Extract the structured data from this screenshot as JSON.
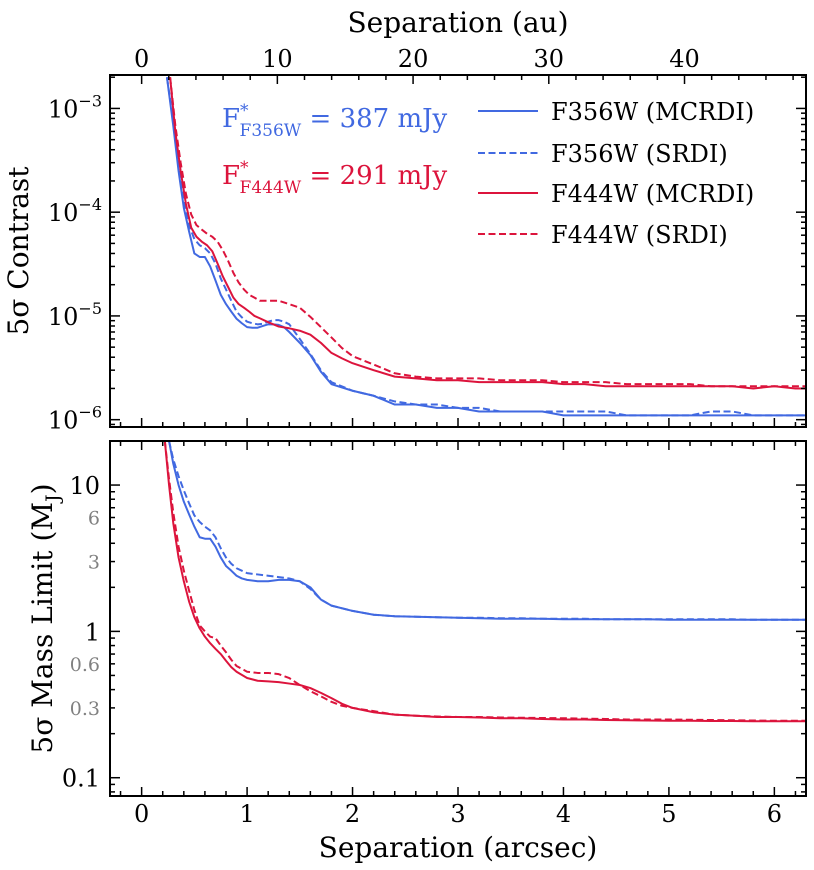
{
  "chart_data": [
    {
      "type": "line",
      "panel": "top",
      "xlabel_top": "Separation (au)",
      "ylabel": "5σ Contrast",
      "yscale": "log",
      "ylim": [
        8.5e-07,
        0.0021
      ],
      "xlim": [
        -0.3,
        6.3
      ],
      "au_per_arcsec": 7.77,
      "top_ticks_au": [
        0,
        10,
        20,
        30,
        40
      ],
      "top_tick_labels": [
        "0",
        "10",
        "20",
        "30",
        "40"
      ],
      "y_tick_labels": [
        {
          "value": 0.001,
          "mantissa": "10",
          "exp": "−3"
        },
        {
          "value": 0.0001,
          "mantissa": "10",
          "exp": "−4"
        },
        {
          "value": 1e-05,
          "mantissa": "10",
          "exp": "−5"
        },
        {
          "value": 1e-06,
          "mantissa": "10",
          "exp": "−6"
        }
      ],
      "annotations": [
        {
          "id": "f356",
          "color": "#4169E1",
          "base": "F",
          "sup": "*",
          "sub": "F356W",
          "rest": "= 387 mJy"
        },
        {
          "id": "f444",
          "color": "#DC143C",
          "base": "F",
          "sup": "*",
          "sub": "F444W",
          "rest": "= 291 mJy"
        }
      ],
      "legend_position": "top-right",
      "series": [
        {
          "name": "F356W (MCRDI)",
          "color": "#4169E1",
          "dash": "solid",
          "x": [
            0.24,
            0.3,
            0.35,
            0.4,
            0.45,
            0.5,
            0.55,
            0.6,
            0.65,
            0.7,
            0.75,
            0.8,
            0.85,
            0.9,
            0.95,
            1.0,
            1.05,
            1.1,
            1.15,
            1.2,
            1.25,
            1.3,
            1.35,
            1.4,
            1.5,
            1.6,
            1.7,
            1.8,
            2.0,
            2.2,
            2.4,
            2.6,
            2.8,
            3.0,
            3.2,
            3.4,
            3.6,
            3.8,
            4.0,
            4.2,
            4.4,
            4.6,
            4.8,
            5.0,
            5.2,
            5.4,
            5.6,
            5.8,
            6.0,
            6.2,
            6.3
          ],
          "y": [
            0.002,
            0.00068,
            0.00025,
            0.00011,
            6.5e-05,
            4e-05,
            3.7e-05,
            3.7e-05,
            3e-05,
            2.2e-05,
            1.6e-05,
            1.3e-05,
            1.1e-05,
            9.4e-06,
            8.5e-06,
            7.8e-06,
            7.7e-06,
            7.7e-06,
            8e-06,
            8.3e-06,
            8.3e-06,
            8.2e-06,
            7.8e-06,
            7e-06,
            5.5e-06,
            4.2e-06,
            2.9e-06,
            2.2e-06,
            1.9e-06,
            1.7e-06,
            1.4e-06,
            1.4e-06,
            1.3e-06,
            1.3e-06,
            1.2e-06,
            1.2e-06,
            1.2e-06,
            1.2e-06,
            1.1e-06,
            1.1e-06,
            1.1e-06,
            1.1e-06,
            1.1e-06,
            1.1e-06,
            1.1e-06,
            1.1e-06,
            1.1e-06,
            1.1e-06,
            1.1e-06,
            1.1e-06,
            1.1e-06
          ]
        },
        {
          "name": "F356W (SRDI)",
          "color": "#4169E1",
          "dash": "dashed",
          "x": [
            0.24,
            0.3,
            0.35,
            0.4,
            0.45,
            0.5,
            0.55,
            0.6,
            0.65,
            0.7,
            0.75,
            0.8,
            0.85,
            0.9,
            0.95,
            1.0,
            1.05,
            1.1,
            1.15,
            1.2,
            1.25,
            1.3,
            1.35,
            1.4,
            1.5,
            1.6,
            1.7,
            1.8,
            2.0,
            2.2,
            2.4,
            2.6,
            2.8,
            3.0,
            3.2,
            3.4,
            3.6,
            3.8,
            4.0,
            4.2,
            4.4,
            4.6,
            4.8,
            5.0,
            5.2,
            5.4,
            5.6,
            5.8,
            6.0,
            6.2,
            6.3
          ],
          "y": [
            0.002,
            0.00075,
            0.00029,
            0.00013,
            7.5e-05,
            5.5e-05,
            4.8e-05,
            4.5e-05,
            4e-05,
            3.2e-05,
            2.3e-05,
            1.8e-05,
            1.4e-05,
            1.1e-05,
            9.7e-06,
            8.8e-06,
            8.5e-06,
            8.3e-06,
            8.4e-06,
            8.8e-06,
            9.1e-06,
            9.1e-06,
            8.8e-06,
            8.3e-06,
            6e-06,
            4.3e-06,
            3e-06,
            2.3e-06,
            1.9e-06,
            1.7e-06,
            1.5e-06,
            1.4e-06,
            1.4e-06,
            1.3e-06,
            1.3e-06,
            1.2e-06,
            1.2e-06,
            1.2e-06,
            1.2e-06,
            1.2e-06,
            1.2e-06,
            1.1e-06,
            1.1e-06,
            1.1e-06,
            1.1e-06,
            1.2e-06,
            1.2e-06,
            1.1e-06,
            1.1e-06,
            1.1e-06,
            1.1e-06
          ]
        },
        {
          "name": "F444W (MCRDI)",
          "color": "#DC143C",
          "dash": "solid",
          "x": [
            0.27,
            0.32,
            0.37,
            0.42,
            0.47,
            0.52,
            0.57,
            0.62,
            0.67,
            0.72,
            0.77,
            0.82,
            0.87,
            0.92,
            0.97,
            1.02,
            1.07,
            1.12,
            1.2,
            1.3,
            1.4,
            1.5,
            1.6,
            1.7,
            1.8,
            1.9,
            2.0,
            2.2,
            2.4,
            2.6,
            2.8,
            3.0,
            3.2,
            3.4,
            3.6,
            3.8,
            4.0,
            4.2,
            4.4,
            4.6,
            4.8,
            5.0,
            5.2,
            5.4,
            5.6,
            5.8,
            6.0,
            6.2,
            6.3
          ],
          "y": [
            0.002,
            0.00059,
            0.00025,
            0.00012,
            7.1e-05,
            5.8e-05,
            5.2e-05,
            4.8e-05,
            4.2e-05,
            3.2e-05,
            2.4e-05,
            1.9e-05,
            1.5e-05,
            1.3e-05,
            1.2e-05,
            1.1e-05,
            1e-05,
            9.5e-06,
            8.7e-06,
            7.9e-06,
            7.6e-06,
            7.2e-06,
            6.6e-06,
            5.5e-06,
            4.4e-06,
            3.9e-06,
            3.5e-06,
            3e-06,
            2.6e-06,
            2.5e-06,
            2.4e-06,
            2.4e-06,
            2.3e-06,
            2.3e-06,
            2.3e-06,
            2.3e-06,
            2.2e-06,
            2.2e-06,
            2.1e-06,
            2.1e-06,
            2.1e-06,
            2.1e-06,
            2.1e-06,
            2.1e-06,
            2.1e-06,
            2e-06,
            2.1e-06,
            2e-06,
            2e-06
          ]
        },
        {
          "name": "F444W (SRDI)",
          "color": "#DC143C",
          "dash": "dashed",
          "x": [
            0.27,
            0.32,
            0.37,
            0.42,
            0.47,
            0.52,
            0.57,
            0.62,
            0.67,
            0.72,
            0.77,
            0.82,
            0.87,
            0.92,
            0.97,
            1.02,
            1.07,
            1.12,
            1.2,
            1.3,
            1.4,
            1.5,
            1.6,
            1.7,
            1.8,
            1.9,
            2.0,
            2.2,
            2.4,
            2.6,
            2.8,
            3.0,
            3.2,
            3.4,
            3.6,
            3.8,
            4.0,
            4.2,
            4.4,
            4.6,
            4.8,
            5.0,
            5.2,
            5.4,
            5.6,
            5.8,
            6.0,
            6.2,
            6.3
          ],
          "y": [
            0.002,
            0.00068,
            0.0003,
            0.00015,
            9.5e-05,
            7.5e-05,
            6.8e-05,
            6.2e-05,
            5.8e-05,
            5.2e-05,
            4.3e-05,
            3.4e-05,
            2.6e-05,
            2.1e-05,
            1.8e-05,
            1.6e-05,
            1.5e-05,
            1.4e-05,
            1.4e-05,
            1.4e-05,
            1.3e-05,
            1.2e-05,
            9.8e-06,
            7.8e-06,
            6.2e-06,
            4.9e-06,
            4.1e-06,
            3.4e-06,
            2.8e-06,
            2.6e-06,
            2.5e-06,
            2.5e-06,
            2.5e-06,
            2.4e-06,
            2.4e-06,
            2.4e-06,
            2.3e-06,
            2.3e-06,
            2.3e-06,
            2.2e-06,
            2.2e-06,
            2.2e-06,
            2.2e-06,
            2.1e-06,
            2.1e-06,
            2.1e-06,
            2.1e-06,
            2.1e-06,
            2.1e-06
          ]
        }
      ]
    },
    {
      "type": "line",
      "panel": "bottom",
      "xlabel": "Separation (arcsec)",
      "ylabel": "5σ Mass Limit (M",
      "ylabel_sub": "J",
      "ylabel_close": ")",
      "yscale": "log",
      "ylim": [
        0.075,
        20
      ],
      "xlim": [
        -0.3,
        6.3
      ],
      "x_ticks": [
        0,
        1,
        2,
        3,
        4,
        5,
        6
      ],
      "x_tick_labels": [
        "0",
        "1",
        "2",
        "3",
        "4",
        "5",
        "6"
      ],
      "y_major_ticks": [
        0.1,
        1,
        10
      ],
      "y_major_labels": [
        "0.1",
        "1",
        "10"
      ],
      "y_minor_labeled_ticks": [
        0.3,
        0.6,
        3,
        6
      ],
      "y_minor_labels": [
        "0.3",
        "0.6",
        "3",
        "6"
      ],
      "series": [
        {
          "name": "F356W (MCRDI)",
          "color": "#4169E1",
          "dash": "solid",
          "x": [
            0.26,
            0.3,
            0.35,
            0.4,
            0.45,
            0.5,
            0.55,
            0.6,
            0.65,
            0.7,
            0.75,
            0.8,
            0.85,
            0.9,
            0.95,
            1.0,
            1.1,
            1.2,
            1.3,
            1.4,
            1.5,
            1.6,
            1.7,
            1.8,
            2.0,
            2.2,
            2.4,
            2.6,
            2.8,
            3.0,
            3.2,
            3.4,
            3.6,
            3.8,
            4.0,
            4.2,
            4.4,
            4.6,
            4.8,
            5.0,
            5.2,
            5.4,
            5.6,
            5.8,
            6.0,
            6.2,
            6.3
          ],
          "y": [
            20,
            14,
            10,
            7.7,
            6.3,
            5.2,
            4.4,
            4.3,
            4.3,
            3.8,
            3.2,
            2.8,
            2.6,
            2.4,
            2.3,
            2.25,
            2.2,
            2.2,
            2.25,
            2.25,
            2.2,
            2.0,
            1.65,
            1.5,
            1.38,
            1.3,
            1.27,
            1.26,
            1.25,
            1.24,
            1.23,
            1.22,
            1.22,
            1.22,
            1.21,
            1.21,
            1.21,
            1.21,
            1.21,
            1.2,
            1.2,
            1.2,
            1.2,
            1.2,
            1.2,
            1.2,
            1.2
          ]
        },
        {
          "name": "F356W (SRDI)",
          "color": "#4169E1",
          "dash": "dashed",
          "x": [
            0.26,
            0.3,
            0.35,
            0.4,
            0.45,
            0.5,
            0.55,
            0.6,
            0.65,
            0.7,
            0.75,
            0.8,
            0.85,
            0.9,
            0.95,
            1.0,
            1.1,
            1.2,
            1.3,
            1.4,
            1.5,
            1.6,
            1.7,
            1.8,
            2.0,
            2.2,
            2.4,
            2.6,
            2.8,
            3.0,
            3.2,
            3.4,
            3.6,
            3.8,
            4.0,
            4.2,
            4.4,
            4.6,
            4.8,
            5.0,
            5.2,
            5.4,
            5.6,
            5.8,
            6.0,
            6.2,
            6.3
          ],
          "y": [
            20,
            15,
            11.5,
            9.2,
            7.5,
            6.2,
            5.6,
            5.2,
            4.9,
            4.4,
            3.7,
            3.2,
            2.9,
            2.7,
            2.6,
            2.5,
            2.45,
            2.4,
            2.35,
            2.3,
            2.2,
            1.95,
            1.65,
            1.5,
            1.38,
            1.3,
            1.27,
            1.26,
            1.25,
            1.24,
            1.24,
            1.23,
            1.23,
            1.22,
            1.22,
            1.22,
            1.21,
            1.21,
            1.21,
            1.21,
            1.21,
            1.21,
            1.21,
            1.2,
            1.2,
            1.2,
            1.2
          ]
        },
        {
          "name": "F444W (MCRDI)",
          "color": "#DC143C",
          "dash": "solid",
          "x": [
            0.22,
            0.26,
            0.3,
            0.35,
            0.4,
            0.45,
            0.5,
            0.55,
            0.6,
            0.65,
            0.7,
            0.75,
            0.8,
            0.85,
            0.9,
            1.0,
            1.1,
            1.2,
            1.3,
            1.4,
            1.5,
            1.6,
            1.7,
            1.8,
            1.9,
            2.0,
            2.2,
            2.4,
            2.6,
            2.8,
            3.0,
            3.2,
            3.4,
            3.6,
            3.8,
            4.0,
            4.2,
            4.4,
            4.6,
            4.8,
            5.0,
            5.2,
            5.4,
            5.6,
            5.8,
            6.0,
            6.2,
            6.3
          ],
          "y": [
            20,
            10,
            5.5,
            3.2,
            2.2,
            1.6,
            1.25,
            1.05,
            0.92,
            0.83,
            0.76,
            0.7,
            0.63,
            0.57,
            0.53,
            0.48,
            0.46,
            0.455,
            0.45,
            0.44,
            0.43,
            0.41,
            0.38,
            0.35,
            0.32,
            0.3,
            0.28,
            0.27,
            0.265,
            0.26,
            0.26,
            0.258,
            0.255,
            0.255,
            0.252,
            0.25,
            0.25,
            0.248,
            0.247,
            0.246,
            0.245,
            0.245,
            0.244,
            0.244,
            0.243,
            0.243,
            0.243,
            0.243
          ]
        },
        {
          "name": "F444W (SRDI)",
          "color": "#DC143C",
          "dash": "dashed",
          "x": [
            0.22,
            0.26,
            0.3,
            0.35,
            0.4,
            0.45,
            0.5,
            0.55,
            0.6,
            0.65,
            0.7,
            0.75,
            0.8,
            0.85,
            0.9,
            1.0,
            1.1,
            1.2,
            1.3,
            1.4,
            1.5,
            1.6,
            1.7,
            1.8,
            1.9,
            2.0,
            2.2,
            2.4,
            2.6,
            2.8,
            3.0,
            3.2,
            3.4,
            3.6,
            3.8,
            4.0,
            4.2,
            4.4,
            4.6,
            4.8,
            5.0,
            5.2,
            5.4,
            5.6,
            5.8,
            6.0,
            6.2,
            6.3
          ],
          "y": [
            20,
            11,
            6.5,
            3.8,
            2.6,
            1.9,
            1.4,
            1.1,
            1.0,
            0.92,
            0.9,
            0.8,
            0.72,
            0.64,
            0.58,
            0.53,
            0.52,
            0.52,
            0.51,
            0.48,
            0.43,
            0.39,
            0.36,
            0.33,
            0.31,
            0.3,
            0.285,
            0.27,
            0.265,
            0.262,
            0.26,
            0.26,
            0.258,
            0.257,
            0.256,
            0.255,
            0.253,
            0.252,
            0.25,
            0.25,
            0.25,
            0.249,
            0.248,
            0.247,
            0.246,
            0.245,
            0.245,
            0.245
          ]
        }
      ]
    }
  ]
}
